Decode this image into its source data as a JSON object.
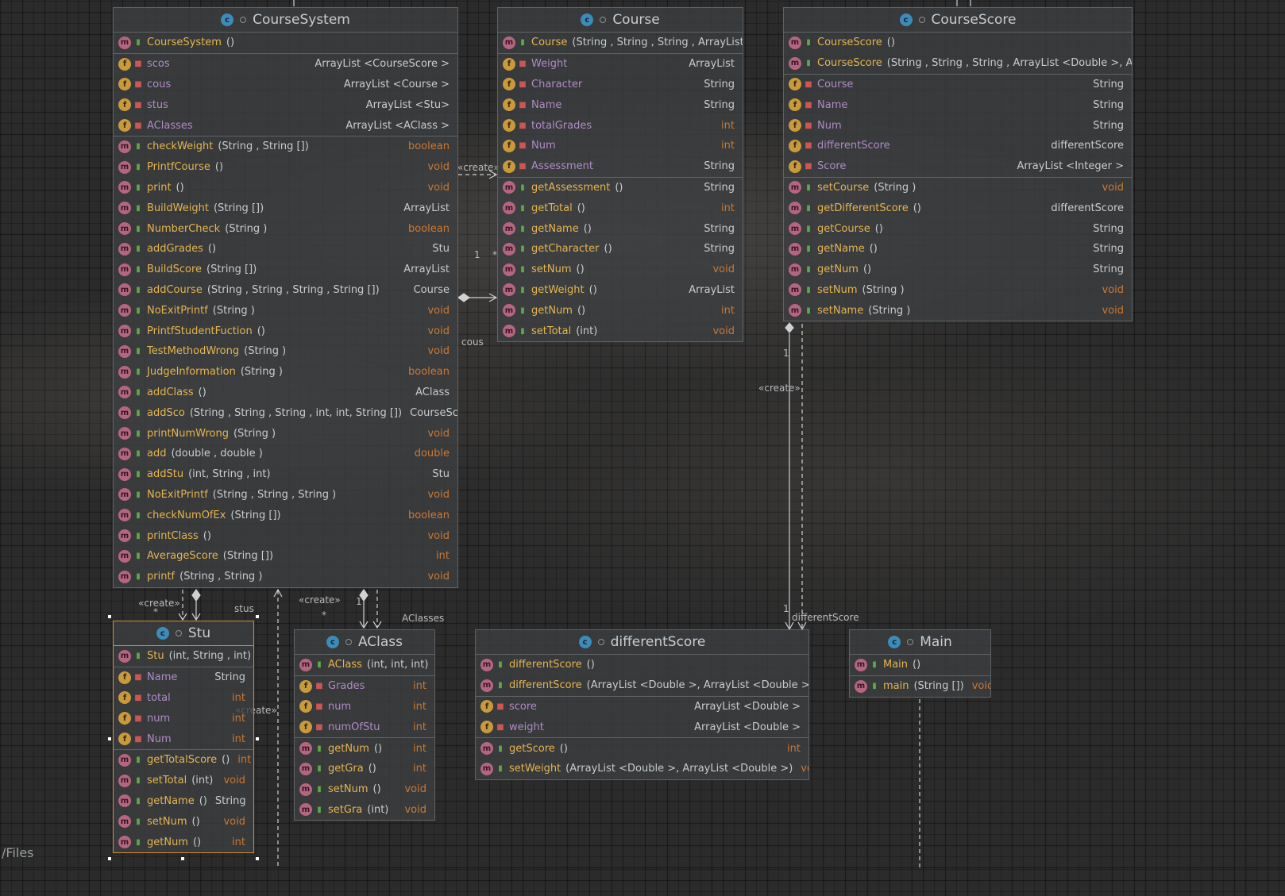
{
  "footer_text": "/Files",
  "link_labels": {
    "create": "«create»",
    "cous": "cous",
    "stus": "stus",
    "aclasses": "AClasses",
    "differentScore": "differentScore",
    "one": "1",
    "many": "*"
  },
  "classes": {
    "courseSystem": {
      "name": "CourseSystem",
      "constructors": [
        {
          "name": "CourseSystem",
          "params": "()",
          "type": ""
        }
      ],
      "fields": [
        {
          "name": "scos",
          "type": "ArrayList <CourseScore >"
        },
        {
          "name": "cous",
          "type": "ArrayList <Course >"
        },
        {
          "name": "stus",
          "type": "ArrayList <Stu>"
        },
        {
          "name": "AClasses",
          "type": "ArrayList <AClass >"
        }
      ],
      "methods": [
        {
          "name": "checkWeight",
          "params": "(String , String [])",
          "type": "boolean"
        },
        {
          "name": "PrintfCourse",
          "params": "()",
          "type": "void"
        },
        {
          "name": "print",
          "params": "()",
          "type": "void"
        },
        {
          "name": "BuildWeight",
          "params": "(String [])",
          "type": "ArrayList"
        },
        {
          "name": "NumberCheck",
          "params": "(String )",
          "type": "boolean"
        },
        {
          "name": "addGrades",
          "params": "()",
          "type": "Stu"
        },
        {
          "name": "BuildScore",
          "params": "(String [])",
          "type": "ArrayList"
        },
        {
          "name": "addCourse",
          "params": "(String , String , String , String [])",
          "type": "Course"
        },
        {
          "name": "NoExitPrintf",
          "params": "(String )",
          "type": "void"
        },
        {
          "name": "PrintfStudentFuction",
          "params": "()",
          "type": "void"
        },
        {
          "name": "TestMethodWrong",
          "params": "(String )",
          "type": "void"
        },
        {
          "name": "JudgeInformation",
          "params": "(String )",
          "type": "boolean"
        },
        {
          "name": "addClass",
          "params": "()",
          "type": "AClass"
        },
        {
          "name": "addSco",
          "params": "(String , String , String , int, int, String [])",
          "type": "CourseScore"
        },
        {
          "name": "printNumWrong",
          "params": "(String )",
          "type": "void"
        },
        {
          "name": "add",
          "params": "(double , double )",
          "type": "double"
        },
        {
          "name": "addStu",
          "params": "(int, String , int)",
          "type": "Stu"
        },
        {
          "name": "NoExitPrintf",
          "params": "(String , String , String )",
          "type": "void"
        },
        {
          "name": "checkNumOfEx",
          "params": "(String [])",
          "type": "boolean"
        },
        {
          "name": "printClass",
          "params": "()",
          "type": "void"
        },
        {
          "name": "AverageScore",
          "params": "(String [])",
          "type": "int"
        },
        {
          "name": "printf",
          "params": "(String , String )",
          "type": "void"
        }
      ]
    },
    "course": {
      "name": "Course",
      "constructors": [
        {
          "name": "Course",
          "params": "(String , String , String , ArrayList )",
          "type": ""
        }
      ],
      "fields": [
        {
          "name": "Weight",
          "type": "ArrayList"
        },
        {
          "name": "Character",
          "type": "String"
        },
        {
          "name": "Name",
          "type": "String"
        },
        {
          "name": "totalGrades",
          "type": "int"
        },
        {
          "name": "Num",
          "type": "int"
        },
        {
          "name": "Assessment",
          "type": "String"
        }
      ],
      "methods": [
        {
          "name": "getAssessment",
          "params": "()",
          "type": "String"
        },
        {
          "name": "getTotal",
          "params": "()",
          "type": "int"
        },
        {
          "name": "getName",
          "params": "()",
          "type": "String"
        },
        {
          "name": "getCharacter",
          "params": "()",
          "type": "String"
        },
        {
          "name": "setNum",
          "params": "()",
          "type": "void"
        },
        {
          "name": "getWeight",
          "params": "()",
          "type": "ArrayList"
        },
        {
          "name": "getNum",
          "params": "()",
          "type": "int"
        },
        {
          "name": "setTotal",
          "params": "(int)",
          "type": "void"
        }
      ]
    },
    "courseScore": {
      "name": "CourseScore",
      "constructors": [
        {
          "name": "CourseScore",
          "params": "()",
          "type": ""
        },
        {
          "name": "CourseScore",
          "params": "(String , String , String , ArrayList <Double >, ArrayL",
          "type": ""
        }
      ],
      "fields": [
        {
          "name": "Course",
          "type": "String"
        },
        {
          "name": "Name",
          "type": "String"
        },
        {
          "name": "Num",
          "type": "String"
        },
        {
          "name": "differentScore",
          "type": "differentScore"
        },
        {
          "name": "Score",
          "type": "ArrayList <Integer >"
        }
      ],
      "methods": [
        {
          "name": "setCourse",
          "params": "(String )",
          "type": "void"
        },
        {
          "name": "getDifferentScore",
          "params": "()",
          "type": "differentScore"
        },
        {
          "name": "getCourse",
          "params": "()",
          "type": "String"
        },
        {
          "name": "getName",
          "params": "()",
          "type": "String"
        },
        {
          "name": "getNum",
          "params": "()",
          "type": "String"
        },
        {
          "name": "setNum",
          "params": "(String )",
          "type": "void"
        },
        {
          "name": "setName",
          "params": "(String )",
          "type": "void"
        }
      ]
    },
    "stu": {
      "name": "Stu",
      "constructors": [
        {
          "name": "Stu",
          "params": "(int, String , int)",
          "type": ""
        }
      ],
      "fields": [
        {
          "name": "Name",
          "type": "String"
        },
        {
          "name": "total",
          "type": "int"
        },
        {
          "name": "num",
          "type": "int"
        },
        {
          "name": "Num",
          "type": "int"
        }
      ],
      "methods": [
        {
          "name": "getTotalScore",
          "params": "()",
          "type": "int"
        },
        {
          "name": "setTotal",
          "params": "(int)",
          "type": "void"
        },
        {
          "name": "getName",
          "params": "()",
          "type": "String"
        },
        {
          "name": "setNum",
          "params": "()",
          "type": "void"
        },
        {
          "name": "getNum",
          "params": "()",
          "type": "int"
        }
      ]
    },
    "aclass": {
      "name": "AClass",
      "constructors": [
        {
          "name": "AClass",
          "params": "(int, int, int)",
          "type": ""
        }
      ],
      "fields": [
        {
          "name": "Grades",
          "type": "int"
        },
        {
          "name": "num",
          "type": "int"
        },
        {
          "name": "numOfStu",
          "type": "int"
        }
      ],
      "methods": [
        {
          "name": "getNum",
          "params": "()",
          "type": "int"
        },
        {
          "name": "getGra",
          "params": "()",
          "type": "int"
        },
        {
          "name": "setNum",
          "params": "()",
          "type": "void"
        },
        {
          "name": "setGra",
          "params": "(int)",
          "type": "void"
        }
      ]
    },
    "differentScore": {
      "name": "differentScore",
      "constructors": [
        {
          "name": "differentScore",
          "params": "()",
          "type": ""
        },
        {
          "name": "differentScore",
          "params": "(ArrayList <Double >, ArrayList <Double >)",
          "type": ""
        }
      ],
      "fields": [
        {
          "name": "score",
          "type": "ArrayList <Double >"
        },
        {
          "name": "weight",
          "type": "ArrayList <Double >"
        }
      ],
      "methods": [
        {
          "name": "getScore",
          "params": "()",
          "type": "int"
        },
        {
          "name": "setWeight",
          "params": "(ArrayList <Double >, ArrayList <Double >)",
          "type": "void"
        }
      ]
    },
    "main": {
      "name": "Main",
      "constructors": [
        {
          "name": "Main",
          "params": "()",
          "type": ""
        }
      ],
      "fields": [],
      "methods": [
        {
          "name": "main",
          "params": "(String [])",
          "type": "void"
        }
      ]
    }
  }
}
